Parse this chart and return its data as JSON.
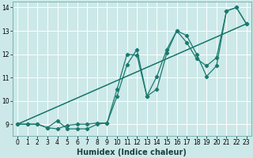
{
  "title": "",
  "xlabel": "Humidex (Indice chaleur)",
  "bg_color": "#cce8e8",
  "grid_color": "#ffffff",
  "line_color": "#1a7a6e",
  "xlim": [
    -0.5,
    23.5
  ],
  "ylim": [
    8.5,
    14.25
  ],
  "xticks": [
    0,
    1,
    2,
    3,
    4,
    5,
    6,
    7,
    8,
    9,
    10,
    11,
    12,
    13,
    14,
    15,
    16,
    17,
    18,
    19,
    20,
    21,
    22,
    23
  ],
  "yticks": [
    9,
    10,
    11,
    12,
    13,
    14
  ],
  "line1_x": [
    0,
    1,
    2,
    3,
    4,
    5,
    6,
    7,
    8,
    9,
    10,
    11,
    12,
    13,
    14,
    15,
    16,
    17,
    18,
    19,
    20,
    21,
    22,
    23
  ],
  "line1_y": [
    9.0,
    9.0,
    9.0,
    8.85,
    8.8,
    8.95,
    9.0,
    9.0,
    9.05,
    9.05,
    10.2,
    11.55,
    12.2,
    10.2,
    10.5,
    12.05,
    13.0,
    12.8,
    12.0,
    11.05,
    11.5,
    13.85,
    14.0,
    13.3
  ],
  "line2_x": [
    0,
    1,
    2,
    3,
    4,
    5,
    6,
    7,
    8,
    9,
    10,
    11,
    12,
    13,
    14,
    15,
    16,
    17,
    18,
    19,
    20,
    21,
    22,
    23
  ],
  "line2_y": [
    9.0,
    9.0,
    9.0,
    8.85,
    9.15,
    8.8,
    8.8,
    8.8,
    9.0,
    9.05,
    10.5,
    12.0,
    11.95,
    10.2,
    11.05,
    12.2,
    13.0,
    12.5,
    11.8,
    11.5,
    11.85,
    13.85,
    14.0,
    13.3
  ],
  "line3_x": [
    0,
    23
  ],
  "line3_y": [
    9.0,
    13.3
  ],
  "line4_x": [
    0,
    23
  ],
  "line4_y": [
    9.0,
    13.3
  ],
  "marker_color": "#1a7a6e",
  "xlabel_fontsize": 7,
  "tick_fontsize": 5.5
}
